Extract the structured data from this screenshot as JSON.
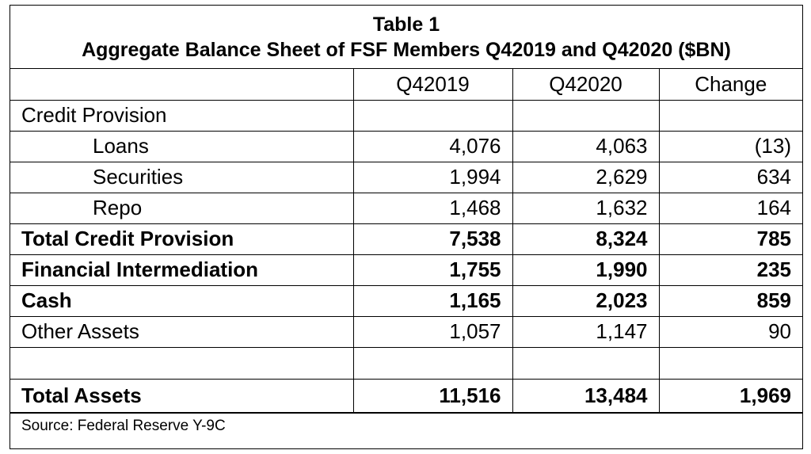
{
  "title": {
    "line1": "Table 1",
    "line2": "Aggregate Balance Sheet of FSF Members Q42019 and Q42020 ($BN)"
  },
  "columns": [
    "",
    "Q42019",
    "Q42020",
    "Change"
  ],
  "rows": [
    {
      "label": "Credit Provision",
      "q42019": "",
      "q42020": "",
      "change": ""
    },
    {
      "label": "Loans",
      "q42019": "4,076",
      "q42020": "4,063",
      "change": "(13)"
    },
    {
      "label": "Securities",
      "q42019": "1,994",
      "q42020": "2,629",
      "change": "634"
    },
    {
      "label": "Repo",
      "q42019": "1,468",
      "q42020": "1,632",
      "change": "164"
    },
    {
      "label": "Total Credit Provision",
      "q42019": "7,538",
      "q42020": "8,324",
      "change": "785"
    },
    {
      "label": "Financial Intermediation",
      "q42019": "1,755",
      "q42020": "1,990",
      "change": "235"
    },
    {
      "label": "Cash",
      "q42019": "1,165",
      "q42020": "2,023",
      "change": "859"
    },
    {
      "label": "Other Assets",
      "q42019": "1,057",
      "q42020": "1,147",
      "change": "90"
    },
    {
      "label": "",
      "q42019": "",
      "q42020": "",
      "change": ""
    },
    {
      "label": "Total Assets",
      "q42019": "11,516",
      "q42020": "13,484",
      "change": "1,969"
    }
  ],
  "source": "Source: Federal Reserve Y-9C"
}
